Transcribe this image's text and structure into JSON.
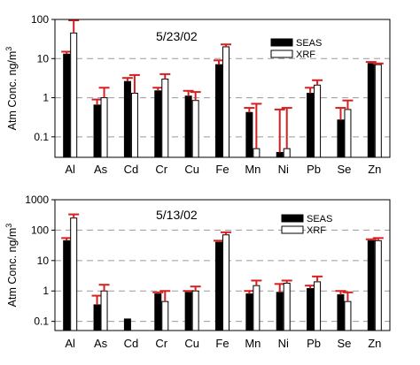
{
  "chart_data": [
    {
      "type": "bar",
      "annotation": "5/23/02",
      "ylabel": "Atm Conc. ng/m3",
      "ylabel_parts": {
        "base": "Atm Conc. ng/m",
        "sup": "3"
      },
      "yscale": "log",
      "ylim": [
        0.03,
        100
      ],
      "yticks": [
        0.1,
        1,
        10,
        100
      ],
      "ytick_labels": [
        "0.1",
        "1",
        "10",
        "100"
      ],
      "grid": "dashed horizontal",
      "legend": "top-right",
      "categories": [
        "Al",
        "As",
        "Cd",
        "Cr",
        "Cu",
        "Fe",
        "Mn",
        "Ni",
        "Pb",
        "Se",
        "Zn"
      ],
      "series": [
        {
          "name": "SEAS",
          "values": [
            13,
            0.65,
            2.6,
            1.5,
            1.1,
            7.0,
            0.42,
            0.04,
            1.3,
            0.27,
            7.5
          ],
          "error": [
            15,
            0.9,
            3.2,
            1.8,
            1.5,
            9.0,
            0.55,
            0.5,
            1.8,
            0.55,
            8.2
          ]
        },
        {
          "name": "XRF",
          "values": [
            45,
            1.0,
            1.3,
            3.0,
            0.85,
            20,
            0.05,
            0.05,
            2.1,
            0.5,
            7.0
          ],
          "error": [
            95,
            1.8,
            3.8,
            4.0,
            1.4,
            23,
            0.7,
            0.55,
            2.8,
            0.85,
            7.5
          ]
        }
      ]
    },
    {
      "type": "bar",
      "annotation": "5/13/02",
      "ylabel": "Atm Conc. ng/m3",
      "ylabel_parts": {
        "base": "Atm Conc. ng/m",
        "sup": "3"
      },
      "yscale": "log",
      "ylim": [
        0.05,
        1000
      ],
      "yticks": [
        0.1,
        1,
        10,
        100,
        1000
      ],
      "ytick_labels": [
        "0.1",
        "1",
        "10",
        "100",
        "1000"
      ],
      "grid": "dashed horizontal",
      "legend": "top-right",
      "categories": [
        "Al",
        "As",
        "Cd",
        "Cr",
        "Cu",
        "Fe",
        "Mn",
        "Ni",
        "Pb",
        "Se",
        "Zn"
      ],
      "series": [
        {
          "name": "SEAS",
          "values": [
            45,
            0.35,
            0.12,
            0.8,
            0.9,
            40,
            0.8,
            0.9,
            1.2,
            0.75,
            45
          ],
          "error": [
            55,
            0.7,
            null,
            0.9,
            1.0,
            45,
            1.0,
            1.7,
            1.5,
            1.0,
            50
          ]
        },
        {
          "name": "XRF",
          "values": [
            250,
            1.0,
            null,
            0.45,
            1.0,
            70,
            1.5,
            1.8,
            2.0,
            0.45,
            45
          ],
          "error": [
            330,
            1.6,
            null,
            1.0,
            1.4,
            85,
            2.2,
            2.2,
            3.0,
            0.9,
            55
          ]
        }
      ]
    }
  ],
  "colors": {
    "seas": "#000000",
    "xrf": "#ffffff",
    "error_bar": "#d62020",
    "grid": "#9a9a9a"
  }
}
